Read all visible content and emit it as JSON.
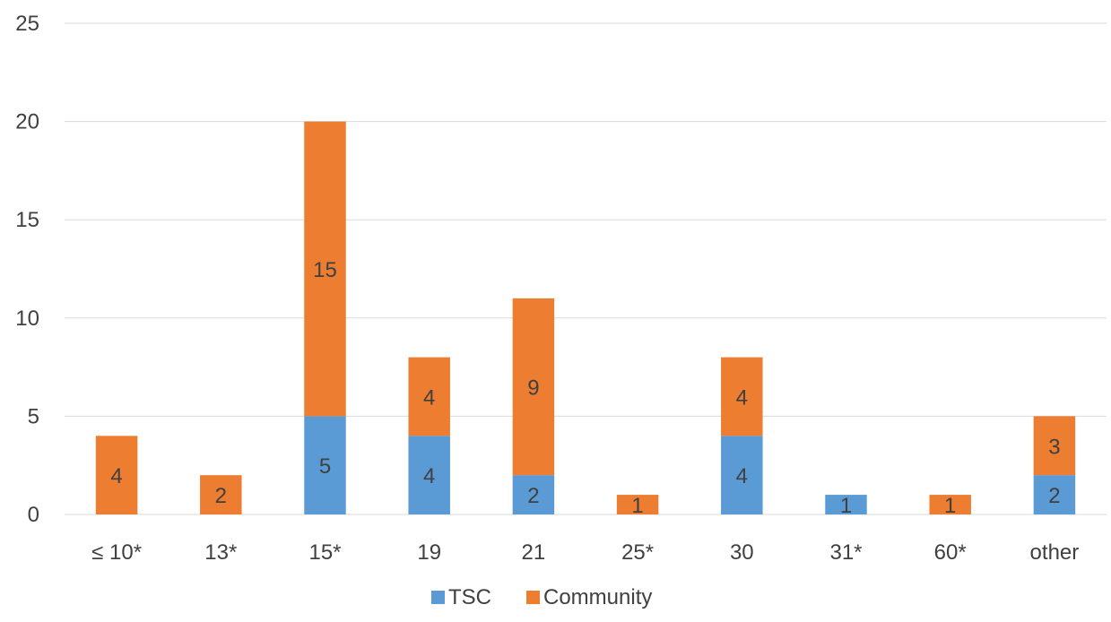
{
  "chart_data": {
    "type": "bar",
    "stacked": true,
    "categories": [
      "≤ 10*",
      "13*",
      "15*",
      "19",
      "21",
      "25*",
      "30",
      "31*",
      "60*",
      "other"
    ],
    "series": [
      {
        "name": "TSC",
        "color": "#5b9bd5",
        "values": [
          0,
          0,
          5,
          4,
          2,
          0,
          4,
          1,
          0,
          2
        ]
      },
      {
        "name": "Community",
        "color": "#ed7d31",
        "values": [
          4,
          2,
          15,
          4,
          9,
          1,
          4,
          0,
          1,
          3
        ]
      }
    ],
    "ylim": [
      0,
      25
    ],
    "yticks": [
      0,
      5,
      10,
      15,
      20,
      25
    ],
    "data_labels": true,
    "grid": true,
    "legend": "bottom-center"
  }
}
